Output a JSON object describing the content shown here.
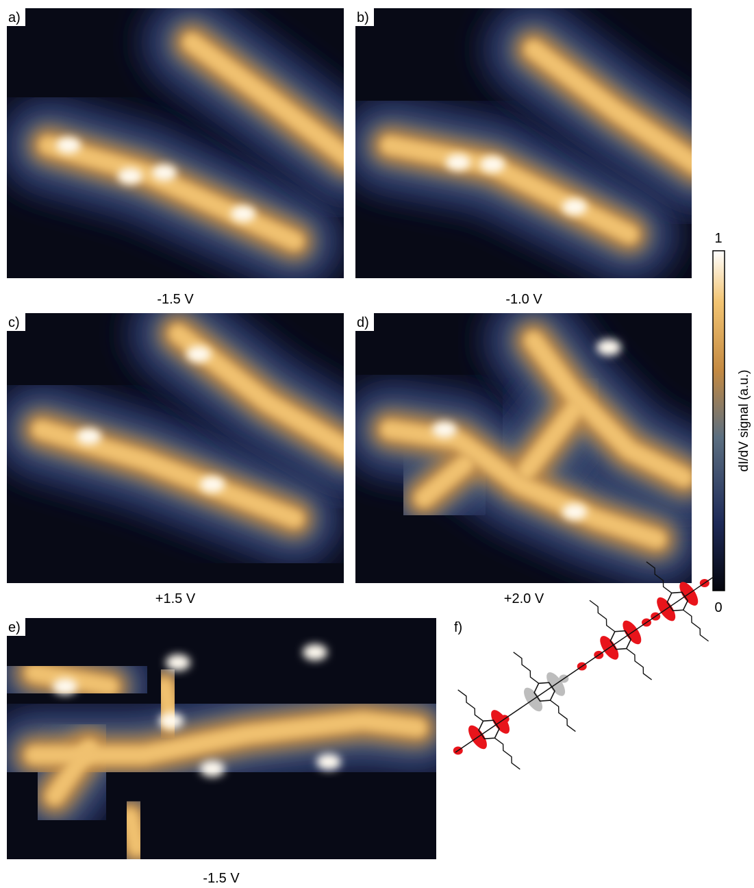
{
  "panels": [
    {
      "label": "a)",
      "caption": "-1.5 V"
    },
    {
      "label": "b)",
      "caption": "-1.0 V"
    },
    {
      "label": "c)",
      "caption": "+1.5 V"
    },
    {
      "label": "d)",
      "caption": "+2.0 V"
    },
    {
      "label": "e)",
      "caption": "-1.5 V"
    },
    {
      "label": "f)"
    }
  ],
  "colorbar": {
    "max": 1,
    "min": 0,
    "label": "dI/dV signal (a.u.)"
  }
}
